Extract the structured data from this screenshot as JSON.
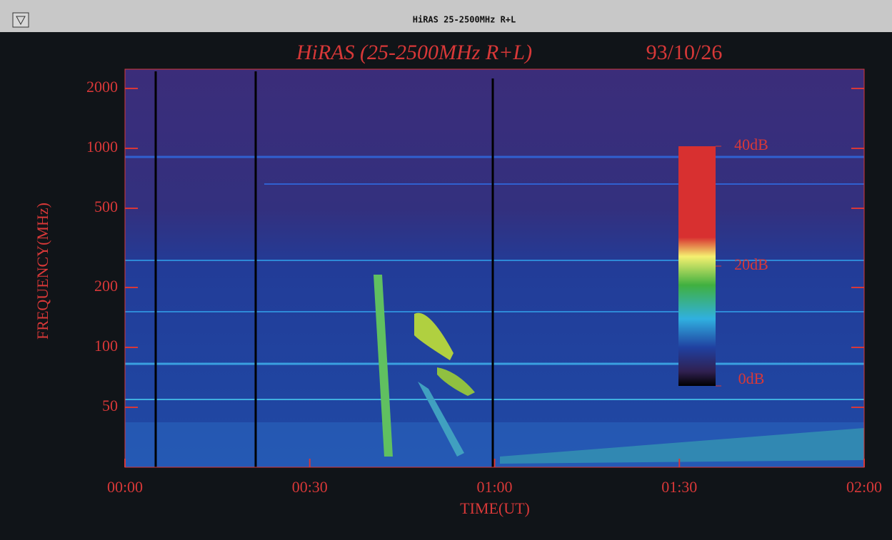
{
  "window_title": "HiRAS 25-2500MHz R+L",
  "chart_data": {
    "type": "spectrogram",
    "title": "HiRAS (25-2500MHz R+L)",
    "date": "93/10/26",
    "x_label": "TIME(UT)",
    "y_label": "FREQUENCY(MHz)",
    "xlim": [
      0,
      120
    ],
    "xticks": [
      {
        "value": 0,
        "label": "00:00"
      },
      {
        "value": 30,
        "label": "00:30"
      },
      {
        "value": 60,
        "label": "01:00"
      },
      {
        "value": 90,
        "label": "01:30"
      },
      {
        "value": 120,
        "label": "02:00"
      }
    ],
    "ylim": [
      25,
      2500
    ],
    "yticks": [
      50,
      100,
      200,
      500,
      1000,
      2000
    ],
    "log_y": true,
    "colorbar": {
      "lim": [
        0,
        40
      ],
      "ticks": [
        {
          "value": 0,
          "label": "0dB"
        },
        {
          "value": 20,
          "label": "20dB"
        },
        {
          "value": 40,
          "label": "40dB"
        }
      ]
    },
    "text_color": "#d83838"
  }
}
